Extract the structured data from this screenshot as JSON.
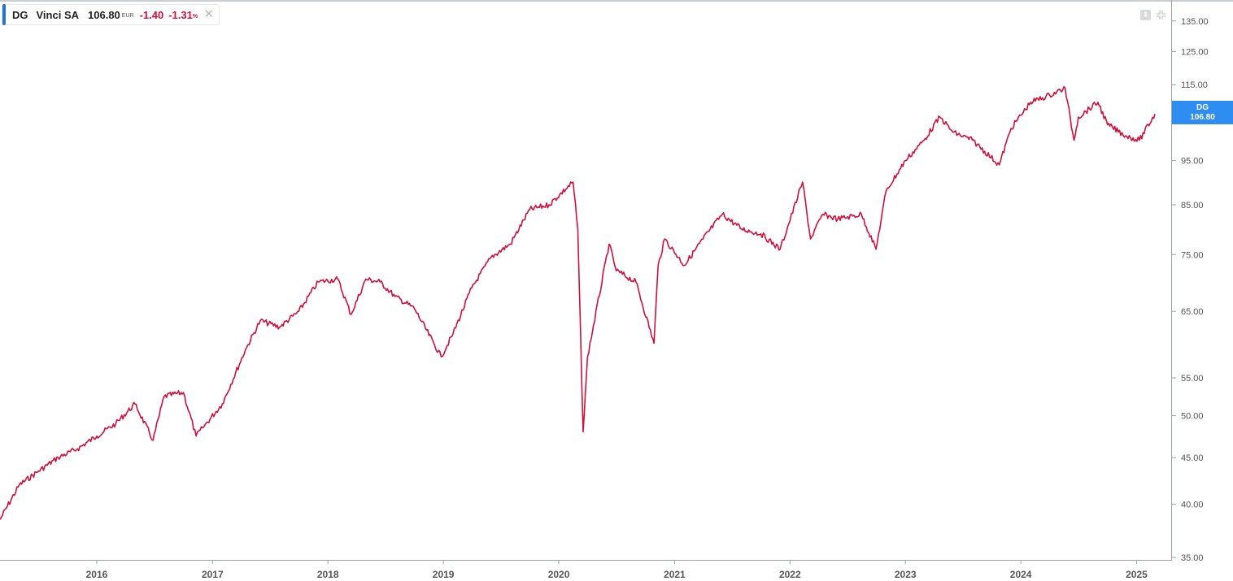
{
  "legend": {
    "symbol": "DG",
    "name": "Vinci SA",
    "price": "106.80",
    "currency": "EUR",
    "change": "-1.40",
    "change_pct": "-1.31",
    "pct_symbol": "%",
    "close_glyph": "✕",
    "accent_color": "#1f77d0",
    "negative_color": "#d0103a"
  },
  "toolbar": {
    "download_icon": "download-icon",
    "collapse_icon": "collapse-icon"
  },
  "last_price_tag": {
    "symbol": "DG",
    "value": "106.80",
    "color": "#2d8df0"
  },
  "chart_data": {
    "type": "line",
    "title": "",
    "xlabel": "",
    "ylabel": "",
    "y_scale": "log",
    "ylim": [
      35,
      140
    ],
    "xlim": [
      "2015-03-01",
      "2025-02-28"
    ],
    "grid": false,
    "line_color": "#d0103a",
    "y_ticks": [
      "135.00",
      "125.00",
      "115.00",
      "95.00",
      "85.00",
      "75.00",
      "65.00",
      "55.00",
      "50.00",
      "45.00",
      "40.00",
      "35.00"
    ],
    "x_ticks": [
      "2016",
      "2017",
      "2018",
      "2019",
      "2020",
      "2021",
      "2022",
      "2023",
      "2024",
      "2025"
    ],
    "series": [
      {
        "name": "",
        "x": [
          "2015-03-01",
          "2015-05-01",
          "2015-07-01",
          "2015-09-01",
          "2015-11-01",
          "2016-01-01",
          "2016-03-01",
          "2016-05-01",
          "2016-06-27",
          "2016-08-01",
          "2016-10-01",
          "2016-11-10",
          "2016-12-01",
          "2017-02-01",
          "2017-04-15",
          "2017-06-01",
          "2017-08-01",
          "2017-10-01",
          "2017-12-01",
          "2018-02-01",
          "2018-03-15",
          "2018-05-01",
          "2018-06-15",
          "2018-08-01",
          "2018-10-01",
          "2018-12-25",
          "2019-02-01",
          "2019-04-01",
          "2019-06-01",
          "2019-08-01",
          "2019-10-01",
          "2019-12-01",
          "2020-02-15",
          "2020-03-01",
          "2020-03-18",
          "2020-04-01",
          "2020-06-08",
          "2020-07-01",
          "2020-09-01",
          "2020-10-28",
          "2020-11-10",
          "2020-12-01",
          "2021-02-01",
          "2021-04-01",
          "2021-06-01",
          "2021-08-01",
          "2021-10-01",
          "2021-12-01",
          "2022-02-10",
          "2022-03-07",
          "2022-04-15",
          "2022-06-01",
          "2022-08-15",
          "2022-09-30",
          "2022-11-01",
          "2023-01-01",
          "2023-03-01",
          "2023-04-20",
          "2023-06-01",
          "2023-08-01",
          "2023-10-25",
          "2023-12-01",
          "2024-02-01",
          "2024-04-01",
          "2024-05-20",
          "2024-06-17",
          "2024-07-01",
          "2024-09-01",
          "2024-10-01",
          "2024-12-01",
          "2025-01-10",
          "2025-02-28"
        ],
        "values": [
          38.5,
          42.0,
          43.5,
          45.0,
          46.0,
          47.5,
          49.0,
          51.5,
          47.0,
          52.5,
          53.0,
          47.5,
          48.5,
          51.5,
          59.0,
          63.5,
          62.5,
          65.0,
          70.0,
          70.5,
          64.5,
          70.5,
          70.0,
          67.5,
          65.5,
          58.0,
          61.5,
          69.0,
          74.5,
          77.0,
          84.0,
          85.0,
          90.0,
          80.0,
          48.0,
          58.0,
          77.0,
          72.0,
          70.0,
          60.0,
          73.0,
          78.0,
          73.0,
          78.0,
          83.0,
          80.0,
          79.0,
          76.0,
          90.0,
          78.0,
          83.0,
          82.0,
          83.0,
          76.0,
          88.0,
          95.0,
          100.0,
          106.0,
          102.0,
          100.0,
          94.0,
          103.0,
          110.0,
          112.0,
          114.0,
          100.0,
          106.0,
          110.0,
          104.0,
          101.0,
          100.0,
          106.8
        ]
      }
    ]
  }
}
